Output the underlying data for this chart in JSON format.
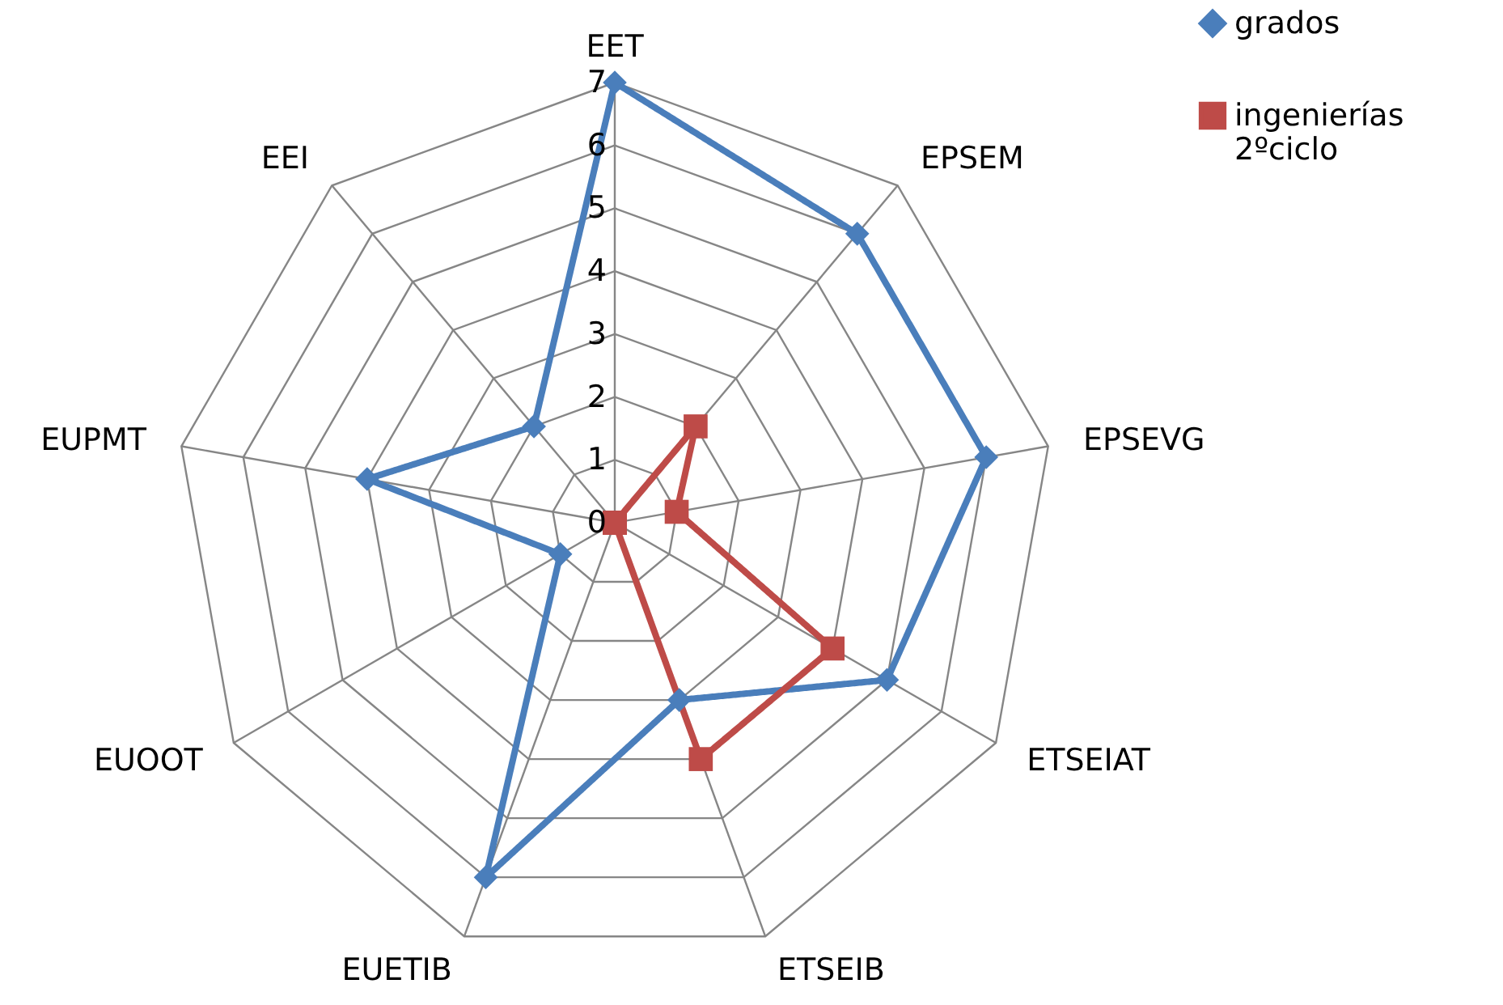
{
  "chart_data": {
    "type": "radar",
    "categories": [
      "EET",
      "EPSEM",
      "EPSEVG",
      "ETSEIAT",
      "ETSEIB",
      "EUETIB",
      "EUOOT",
      "EUPMT",
      "EEI"
    ],
    "series": [
      {
        "name": "grados",
        "color": "#4a7ebb",
        "marker": "diamond",
        "values": [
          7,
          6,
          6,
          5,
          3,
          6,
          1,
          4,
          2
        ]
      },
      {
        "name": "ingenierías\n2ºciclo",
        "color": "#be4b48",
        "marker": "square",
        "values": [
          0,
          2,
          1,
          4,
          4,
          0,
          0,
          0,
          0
        ]
      }
    ],
    "ylim": [
      0,
      7
    ],
    "yticks": [
      0,
      1,
      2,
      3,
      4,
      5,
      6,
      7
    ],
    "grid": true,
    "legend": "top right"
  }
}
